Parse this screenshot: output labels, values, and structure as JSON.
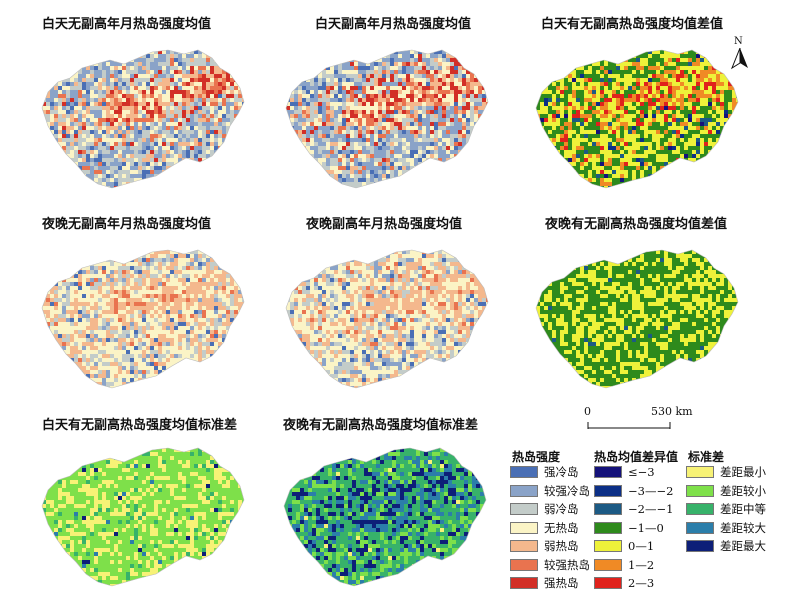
{
  "panels": [
    {
      "title": "白天无副高年月热岛强度均值",
      "scheme": "intensity_day_a"
    },
    {
      "title": "白天副高年月热岛强度均值",
      "scheme": "intensity_day_b"
    },
    {
      "title": "白天有无副高热岛强度均值差值",
      "scheme": "diff_day"
    },
    {
      "title": "夜晚无副高年月热岛强度均值",
      "scheme": "intensity_night_a"
    },
    {
      "title": "夜晚副高年月热岛强度均值",
      "scheme": "intensity_night_b"
    },
    {
      "title": "夜晚有无副高热岛强度均值差值",
      "scheme": "diff_night"
    },
    {
      "title": "白天有无副高热岛强度均值标准差",
      "scheme": "std_day"
    },
    {
      "title": "夜晚有无副高热岛强度均值标准差",
      "scheme": "std_night"
    }
  ],
  "north_arrow": {
    "label": "N"
  },
  "scale_bar": {
    "start": "0",
    "end": "530 km"
  },
  "legends": {
    "intensity": {
      "title": "热岛强度",
      "items": [
        {
          "label": "强冷岛",
          "color": "#4a6fb5"
        },
        {
          "label": "较强冷岛",
          "color": "#8aa3c8"
        },
        {
          "label": "弱冷岛",
          "color": "#c3ccc9"
        },
        {
          "label": "无热岛",
          "color": "#fbf4c6"
        },
        {
          "label": "弱热岛",
          "color": "#f4b88d"
        },
        {
          "label": "较强热岛",
          "color": "#e9734f"
        },
        {
          "label": "强热岛",
          "color": "#d22f27"
        }
      ]
    },
    "difference": {
      "title": "热岛均值差异值",
      "items": [
        {
          "label": "≤−3",
          "color": "#15127a"
        },
        {
          "label": "−3—−2",
          "color": "#0c2f86"
        },
        {
          "label": "−2—−1",
          "color": "#1c5a84"
        },
        {
          "label": "−1—0",
          "color": "#2e8a1c"
        },
        {
          "label": "0—1",
          "color": "#eef23a"
        },
        {
          "label": "1—2",
          "color": "#f08a25"
        },
        {
          "label": "2—3",
          "color": "#e0221c"
        }
      ]
    },
    "std": {
      "title": "标准差",
      "items": [
        {
          "label": "差距最小",
          "color": "#f7f276"
        },
        {
          "label": "差距较小",
          "color": "#7ee04a"
        },
        {
          "label": "差距中等",
          "color": "#37b26a"
        },
        {
          "label": "差距较大",
          "color": "#2b7eaa"
        },
        {
          "label": "差距最大",
          "color": "#0d1f78"
        }
      ]
    }
  }
}
